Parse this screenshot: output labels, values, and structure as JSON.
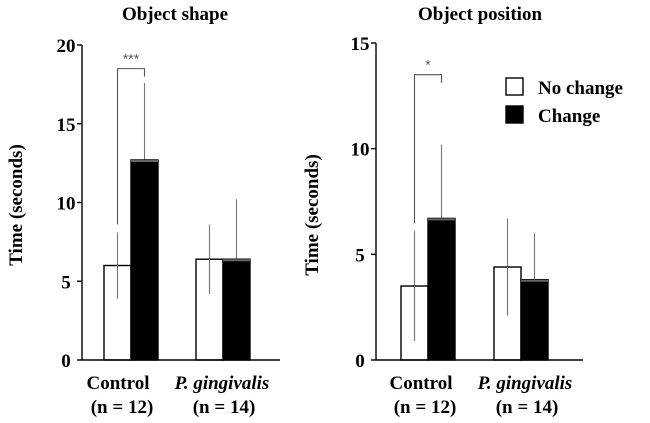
{
  "colors": {
    "no_change": "#ffffff",
    "change": "#000000",
    "axis": "#000000",
    "error": "#777777"
  },
  "legend": {
    "placement": "top-right",
    "entries": [
      {
        "label": "No change",
        "color": "#ffffff"
      },
      {
        "label": "Change",
        "color": "#000000"
      }
    ]
  },
  "chart_data": [
    {
      "type": "bar",
      "title": "Object shape",
      "ylabel": "Time (seconds)",
      "ylim": [
        0,
        20
      ],
      "yticks": [
        0,
        5,
        10,
        15,
        20
      ],
      "categories": [
        {
          "name": "Control",
          "n": "(n = 12)",
          "italic": false
        },
        {
          "name": "P. gingivalis",
          "n": "(n = 14)",
          "italic": true
        }
      ],
      "series": [
        {
          "name": "No change",
          "values": [
            6.0,
            6.4
          ],
          "errors": [
            2.1,
            2.2
          ]
        },
        {
          "name": "Change",
          "values": [
            12.7,
            6.4
          ],
          "errors": [
            4.9,
            3.8
          ]
        }
      ],
      "annotations": [
        {
          "text": "***",
          "category": 0,
          "y": 18.5
        }
      ]
    },
    {
      "type": "bar",
      "title": "Object position",
      "ylabel": "Time (seconds)",
      "ylim": [
        0,
        15
      ],
      "yticks": [
        0,
        5,
        10,
        15
      ],
      "categories": [
        {
          "name": "Control",
          "n": "(n = 12)",
          "italic": false
        },
        {
          "name": "P. gingivalis",
          "n": "(n = 14)",
          "italic": true
        }
      ],
      "series": [
        {
          "name": "No change",
          "values": [
            3.5,
            4.4
          ],
          "errors": [
            2.6,
            2.3
          ]
        },
        {
          "name": "Change",
          "values": [
            6.7,
            3.8
          ],
          "errors": [
            3.5,
            2.2
          ]
        }
      ],
      "annotations": [
        {
          "text": "*",
          "category": 0,
          "y": 13.5
        }
      ]
    }
  ]
}
